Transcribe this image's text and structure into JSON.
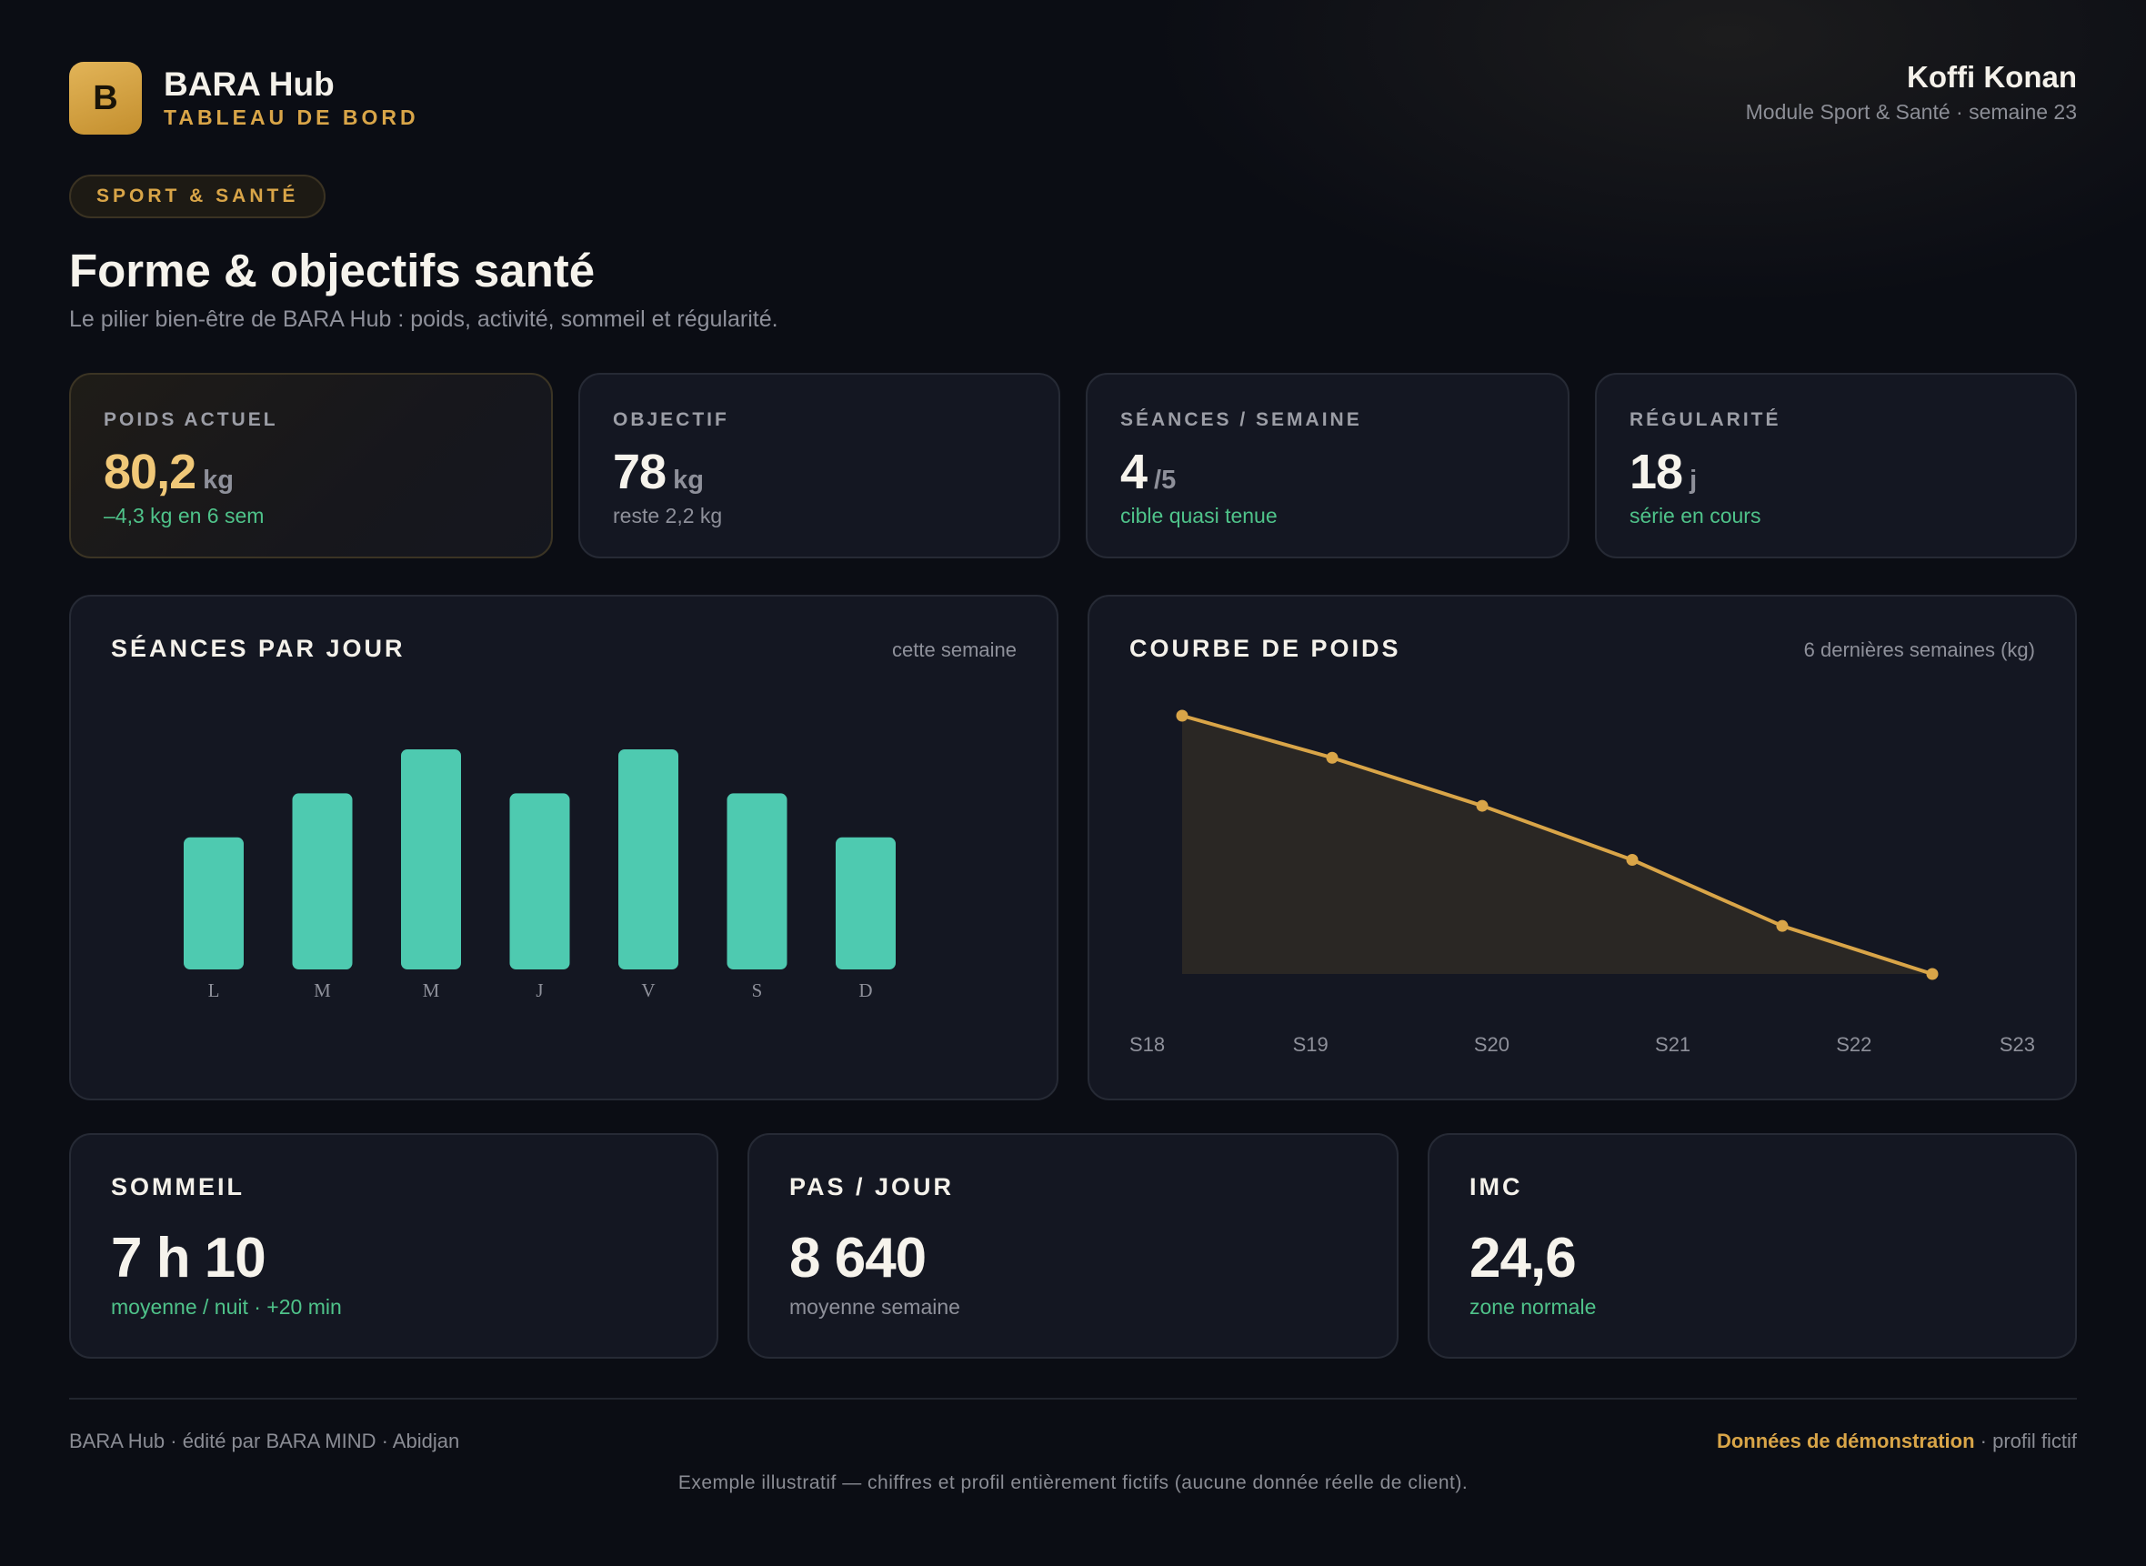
{
  "header": {
    "logo_letter": "B",
    "app_name": "BARA Hub",
    "app_subtitle": "TABLEAU DE BORD",
    "user_name": "Koffi Konan",
    "user_module": "Module Sport & Santé · semaine 23"
  },
  "section": {
    "pill": "SPORT & SANTÉ",
    "title": "Forme & objectifs santé",
    "subtitle": "Le pilier bien-être de BARA Hub : poids, activité, sommeil et régularité."
  },
  "kpis": [
    {
      "label": "POIDS ACTUEL",
      "value": "80,2",
      "unit": "kg",
      "note": "–4,3 kg en 6 sem"
    },
    {
      "label": "OBJECTIF",
      "value": "78",
      "unit": "kg",
      "note": "reste 2,2 kg"
    },
    {
      "label": "SÉANCES / SEMAINE",
      "value": "4",
      "unit": "/5",
      "note": "cible quasi tenue"
    },
    {
      "label": "RÉGULARITÉ",
      "value": "18",
      "unit": "j",
      "note": "série en cours"
    }
  ],
  "panels": {
    "sessions": {
      "title": "SÉANCES PAR JOUR",
      "subtitle": "cette semaine"
    },
    "weight": {
      "title": "COURBE DE POIDS",
      "subtitle": "6 dernières semaines (kg)"
    }
  },
  "chart_data": [
    {
      "type": "bar",
      "title": "SÉANCES PAR JOUR",
      "categories": [
        "L",
        "M",
        "M",
        "J",
        "V",
        "S",
        "D"
      ],
      "values": [
        3,
        4,
        5,
        4,
        5,
        4,
        3
      ],
      "ylim": [
        0,
        5
      ],
      "grid": false,
      "color": "#4ecab0"
    },
    {
      "type": "area",
      "title": "COURBE DE POIDS",
      "x": [
        "S18",
        "S19",
        "S20",
        "S21",
        "S22",
        "S23"
      ],
      "values": [
        84.5,
        83.8,
        83.0,
        82.1,
        81.0,
        80.2
      ],
      "ylim": [
        80.2,
        84.5
      ],
      "grid": false,
      "line_color": "#d9a548"
    }
  ],
  "stats": [
    {
      "label": "SOMMEIL",
      "value": "7 h 10",
      "note": "moyenne / nuit · +20 min"
    },
    {
      "label": "PAS / JOUR",
      "value": "8 640",
      "note": "moyenne semaine"
    },
    {
      "label": "IMC",
      "value": "24,6",
      "note": "zone normale"
    }
  ],
  "footer": {
    "left": "BARA Hub · édité par BARA MIND · Abidjan",
    "right_highlight": "Données de démonstration",
    "right_rest": " · profil fictif",
    "note": "Exemple illustratif — chiffres et profil entièrement fictifs (aucune donnée réelle de client)."
  }
}
